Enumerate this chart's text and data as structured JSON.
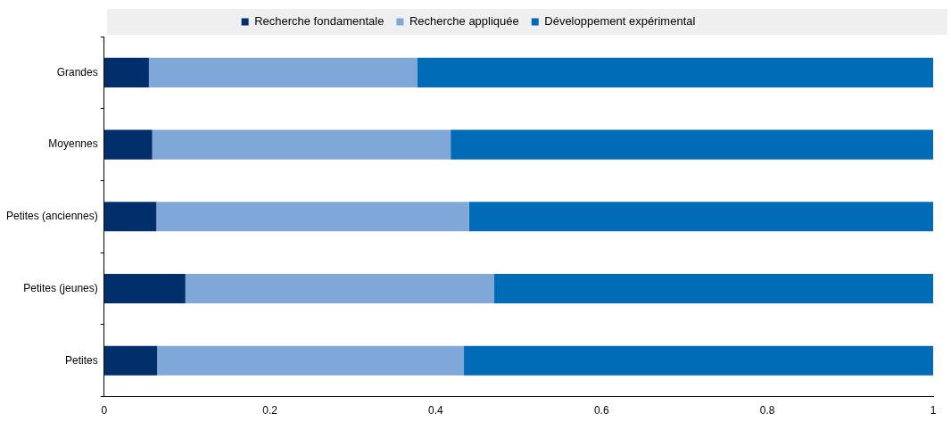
{
  "chart_data": {
    "type": "bar",
    "orientation": "horizontal",
    "stacked": true,
    "legend": "top",
    "grid": false,
    "categories": [
      "Grandes",
      "Moyennes",
      "Petites (anciennes)",
      "Petites (jeunes)",
      "Petites"
    ],
    "series": [
      {
        "name": "Recherche fondamentale",
        "color": "#002f6c",
        "values": [
          0.054,
          0.058,
          0.063,
          0.098,
          0.064
        ]
      },
      {
        "name": "Recherche appliquée",
        "color": "#7fa8d9",
        "values": [
          0.324,
          0.36,
          0.377,
          0.372,
          0.37
        ]
      },
      {
        "name": "Développement expérimental",
        "color": "#006bb6",
        "values": [
          0.622,
          0.582,
          0.56,
          0.53,
          0.566
        ]
      }
    ],
    "xlim": [
      0,
      1
    ],
    "xticks": [
      0,
      0.2,
      0.4,
      0.6,
      0.8,
      1
    ]
  }
}
